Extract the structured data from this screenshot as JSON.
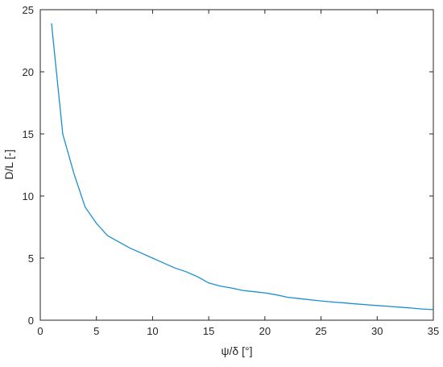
{
  "chart_data": {
    "type": "line",
    "x_label": "ψ/δ [°]",
    "y_label": "D/L [-]",
    "x": [
      1,
      2,
      3,
      4,
      5,
      6,
      7,
      8,
      9,
      10,
      11,
      12,
      13,
      14,
      15,
      16,
      17,
      18,
      19,
      20,
      21,
      22,
      23,
      24,
      25,
      26,
      27,
      28,
      29,
      30,
      31,
      32,
      33,
      34,
      35
    ],
    "series": [
      {
        "color": "#1a8fd0",
        "values": [
          23.9,
          15,
          11.8,
          9.1,
          7.8,
          6.8,
          6.3,
          5.8,
          5.4,
          5.0,
          4.6,
          4.2,
          3.9,
          3.5,
          3.0,
          2.75,
          2.6,
          2.4,
          2.3,
          2.2,
          2.05,
          1.85,
          1.75,
          1.65,
          1.55,
          1.47,
          1.4,
          1.32,
          1.25,
          1.18,
          1.12,
          1.05,
          0.98,
          0.9,
          0.85
        ]
      }
    ],
    "xlim": [
      0,
      35
    ],
    "ylim": [
      0,
      25
    ],
    "xticks": [
      0,
      5,
      10,
      15,
      20,
      25,
      30,
      35
    ],
    "yticks": [
      0,
      5,
      10,
      15,
      20,
      25
    ]
  }
}
